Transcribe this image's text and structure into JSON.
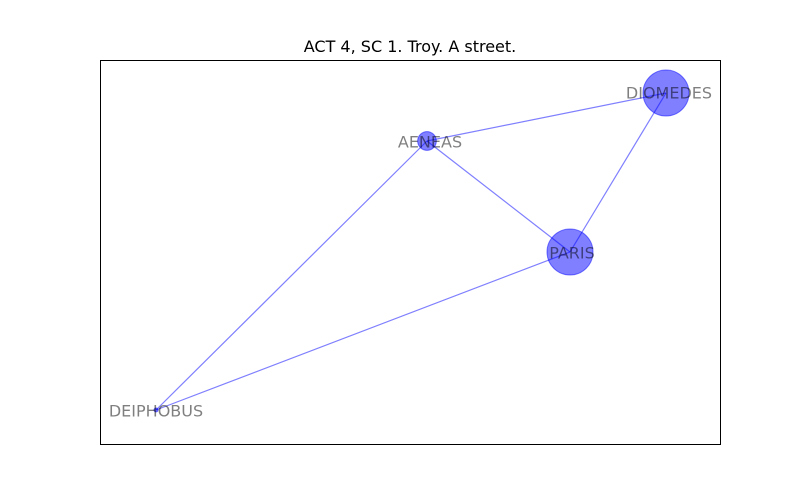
{
  "title": "ACT 4, SC 1. Troy. A street.",
  "colors": {
    "node_fill": "#0000ff",
    "edge": "#0000ff",
    "label": "#000000",
    "frame": "#000000"
  },
  "nodes": [
    {
      "id": "AENEAS",
      "label": "AENEAS",
      "relative_size": 0.35
    },
    {
      "id": "DIOMEDES",
      "label": "DIOMEDES",
      "relative_size": 1.0
    },
    {
      "id": "PARIS",
      "label": "PARIS",
      "relative_size": 1.0
    },
    {
      "id": "DEIPHOBUS",
      "label": "DEIPHOBUS",
      "relative_size": 0.0
    }
  ],
  "edges": [
    {
      "source": "AENEAS",
      "target": "DIOMEDES"
    },
    {
      "source": "AENEAS",
      "target": "PARIS"
    },
    {
      "source": "AENEAS",
      "target": "DEIPHOBUS"
    },
    {
      "source": "DIOMEDES",
      "target": "PARIS"
    },
    {
      "source": "PARIS",
      "target": "DEIPHOBUS"
    }
  ]
}
